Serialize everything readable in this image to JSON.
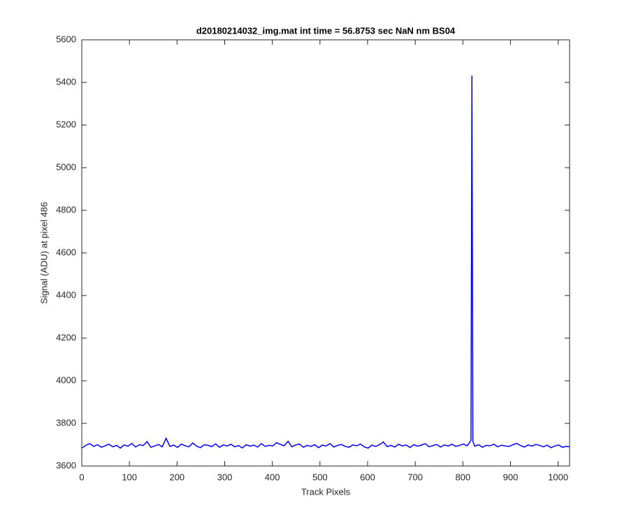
{
  "chart_data": {
    "type": "line",
    "title": "d20180214032_img.mat int time = 56.8753 sec  NaN nm BS04",
    "x_label": "Track Pixels",
    "y_label": "Signal (ADU) at pixel 486",
    "color": "#0000ff",
    "grid": false,
    "xlim": [
      0,
      1024
    ],
    "ylim": [
      3600,
      5600
    ],
    "xticks": [
      0,
      100,
      200,
      300,
      400,
      500,
      600,
      700,
      800,
      900,
      1000
    ],
    "yticks": [
      3600,
      3800,
      4000,
      4200,
      4400,
      4600,
      4800,
      5000,
      5200,
      5400,
      5600
    ],
    "x": [
      1,
      9,
      17,
      25,
      33,
      41,
      49,
      57,
      65,
      73,
      81,
      89,
      97,
      105,
      113,
      121,
      129,
      137,
      145,
      153,
      161,
      169,
      177,
      185,
      193,
      201,
      209,
      217,
      225,
      233,
      241,
      249,
      257,
      265,
      273,
      281,
      289,
      297,
      305,
      313,
      321,
      329,
      337,
      345,
      353,
      361,
      369,
      377,
      385,
      393,
      401,
      409,
      417,
      425,
      433,
      441,
      449,
      457,
      465,
      473,
      481,
      489,
      497,
      505,
      513,
      521,
      529,
      537,
      545,
      553,
      561,
      569,
      577,
      585,
      593,
      601,
      609,
      617,
      625,
      633,
      641,
      649,
      657,
      665,
      673,
      681,
      689,
      697,
      705,
      713,
      721,
      729,
      737,
      745,
      753,
      761,
      769,
      777,
      785,
      793,
      801,
      809,
      817,
      819,
      821,
      825,
      833,
      841,
      849,
      857,
      865,
      873,
      881,
      889,
      897,
      905,
      913,
      921,
      929,
      937,
      945,
      953,
      961,
      969,
      977,
      985,
      993,
      1001,
      1009,
      1017,
      1024
    ],
    "values": [
      3685,
      3698,
      3705,
      3692,
      3700,
      3688,
      3695,
      3702,
      3690,
      3697,
      3684,
      3699,
      3693,
      3706,
      3689,
      3700,
      3696,
      3715,
      3688,
      3694,
      3701,
      3690,
      3730,
      3692,
      3698,
      3687,
      3703,
      3695,
      3690,
      3708,
      3693,
      3686,
      3700,
      3697,
      3691,
      3704,
      3688,
      3699,
      3694,
      3702,
      3690,
      3696,
      3685,
      3700,
      3693,
      3698,
      3689,
      3705,
      3692,
      3697,
      3694,
      3710,
      3701,
      3695,
      3716,
      3690,
      3699,
      3703,
      3688,
      3697,
      3692,
      3700,
      3686,
      3698,
      3694,
      3705,
      3689,
      3697,
      3701,
      3692,
      3688,
      3699,
      3695,
      3703,
      3690,
      3684,
      3698,
      3692,
      3700,
      3713,
      3691,
      3697,
      3689,
      3702,
      3694,
      3699,
      3687,
      3700,
      3693,
      3698,
      3705,
      3690,
      3696,
      3701,
      3689,
      3699,
      3694,
      3702,
      3692,
      3697,
      3703,
      3695,
      3720,
      5432,
      3715,
      3693,
      3700,
      3688,
      3697,
      3695,
      3702,
      3690,
      3698,
      3694,
      3692,
      3700,
      3706,
      3696,
      3689,
      3699,
      3693,
      3701,
      3697,
      3690,
      3698,
      3686,
      3694,
      3699,
      3688,
      3692,
      3690
    ]
  }
}
